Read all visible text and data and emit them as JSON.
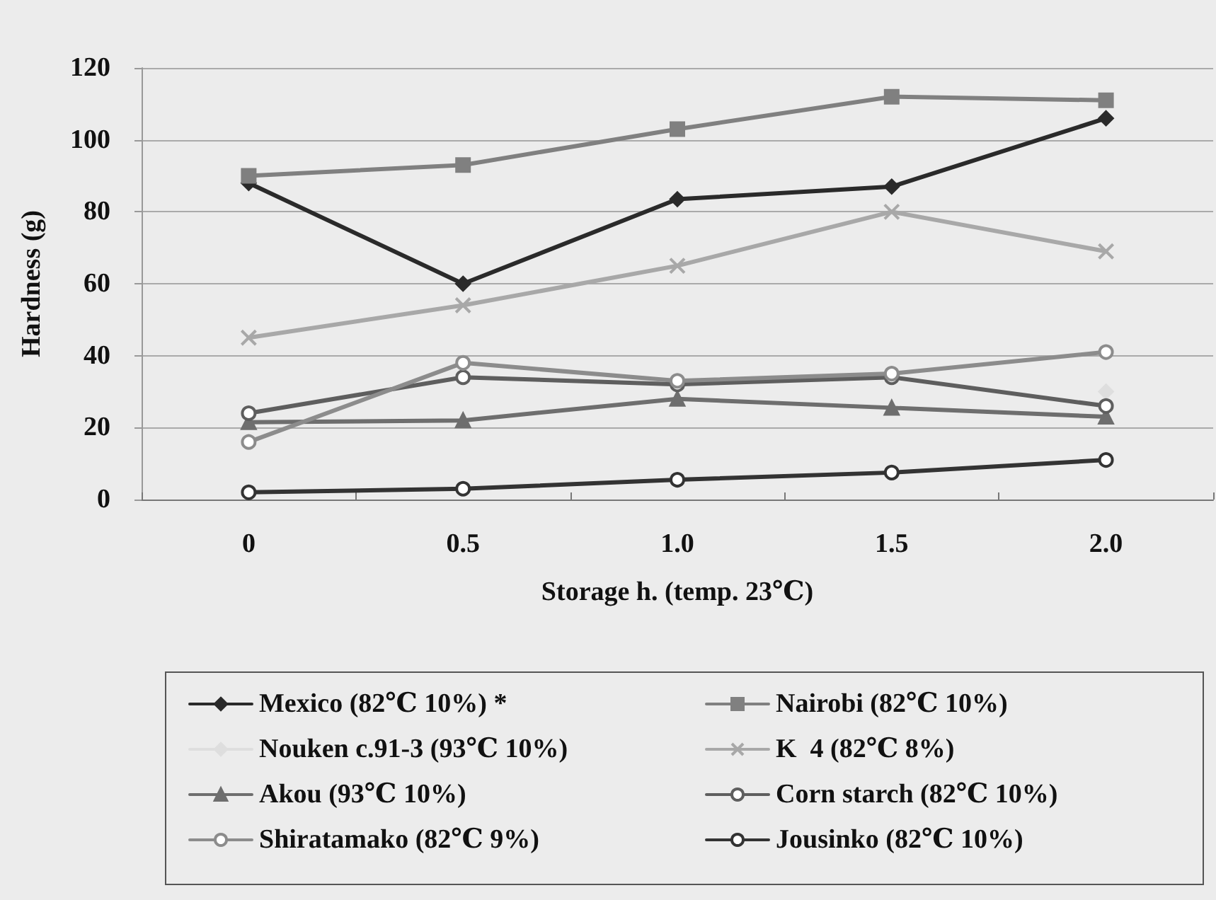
{
  "chart_data": {
    "type": "line",
    "xlabel": "Storage h. (temp. 23℃)",
    "ylabel": "Hardness (g)",
    "categories": [
      "0",
      "0.5",
      "1.0",
      "1.5",
      "2.0"
    ],
    "ylim": [
      0,
      120
    ],
    "yticks": [
      0,
      20,
      40,
      60,
      80,
      100,
      120
    ],
    "grid": "y",
    "legend": "bottom",
    "series": [
      {
        "name": "Mexico (82℃ 10%) *",
        "color": "#2a2a2a",
        "marker": "diamond",
        "values": [
          88,
          60,
          83.5,
          87,
          106
        ]
      },
      {
        "name": "Nairobi (82℃ 10%)",
        "color": "#808080",
        "marker": "square",
        "values": [
          90,
          93,
          103,
          112,
          111
        ]
      },
      {
        "name": "Nouken c.91-3 (93℃ 10%)",
        "color": "#dedede",
        "marker": "diamond",
        "values": [
          null,
          null,
          null,
          null,
          30
        ]
      },
      {
        "name": "K  4 (82℃ 8%)",
        "color": "#a8a8a8",
        "marker": "cross",
        "values": [
          45,
          54,
          65,
          80,
          69
        ]
      },
      {
        "name": "Akou (93℃ 10%)",
        "color": "#6e6e6e",
        "marker": "triangle",
        "values": [
          21.5,
          22,
          28,
          25.5,
          23
        ]
      },
      {
        "name": "Corn starch (82℃ 10%)",
        "color": "#5e5e5e",
        "marker": "circle",
        "values": [
          24,
          34,
          32,
          34,
          26
        ]
      },
      {
        "name": "Shiratamako (82℃ 9%)",
        "color": "#8c8c8c",
        "marker": "circle",
        "values": [
          16,
          38,
          33,
          35,
          41
        ]
      },
      {
        "name": "Jousinko (82℃ 10%)",
        "color": "#333333",
        "marker": "circle",
        "values": [
          2,
          3,
          5.5,
          7.5,
          11
        ]
      }
    ]
  }
}
